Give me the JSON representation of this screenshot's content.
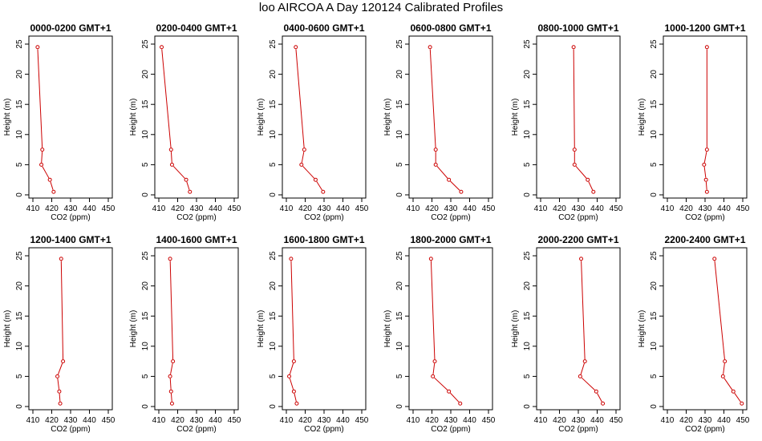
{
  "figure_title": "loo AIRCOA A  Day 120124  Calibrated Profiles",
  "colors": {
    "line": "#cc0000",
    "axis": "#000000",
    "background": "#ffffff"
  },
  "chart_data": [
    {
      "type": "line",
      "title": "0000-0200 GMT+1",
      "xlabel": "CO2 (ppm)",
      "ylabel": "Height (m)",
      "xlim": [
        410,
        450
      ],
      "ylim": [
        0,
        25
      ],
      "xticks": [
        410,
        420,
        430,
        440,
        450
      ],
      "yticks": [
        0,
        5,
        10,
        15,
        20,
        25
      ],
      "grid": false,
      "marker": "open-circle",
      "x": [
        421.0,
        419.0,
        414.5,
        415.0,
        412.5
      ],
      "y": [
        0.5,
        2.5,
        5.0,
        7.5,
        24.5
      ]
    },
    {
      "type": "line",
      "title": "0200-0400 GMT+1",
      "xlabel": "CO2 (ppm)",
      "ylabel": "Height (m)",
      "xlim": [
        410,
        450
      ],
      "ylim": [
        0,
        25
      ],
      "xticks": [
        410,
        420,
        430,
        440,
        450
      ],
      "yticks": [
        0,
        5,
        10,
        15,
        20,
        25
      ],
      "grid": false,
      "marker": "open-circle",
      "x": [
        426.5,
        424.5,
        417.0,
        416.5,
        411.5
      ],
      "y": [
        0.5,
        2.5,
        5.0,
        7.5,
        24.5
      ]
    },
    {
      "type": "line",
      "title": "0400-0600 GMT+1",
      "xlabel": "CO2 (ppm)",
      "ylabel": "Height (m)",
      "xlim": [
        410,
        450
      ],
      "ylim": [
        0,
        25
      ],
      "xticks": [
        410,
        420,
        430,
        440,
        450
      ],
      "yticks": [
        0,
        5,
        10,
        15,
        20,
        25
      ],
      "grid": false,
      "marker": "open-circle",
      "x": [
        429.5,
        425.5,
        418.0,
        419.5,
        415.0
      ],
      "y": [
        0.5,
        2.5,
        5.0,
        7.5,
        24.5
      ]
    },
    {
      "type": "line",
      "title": "0600-0800 GMT+1",
      "xlabel": "CO2 (ppm)",
      "ylabel": "Height (m)",
      "xlim": [
        410,
        450
      ],
      "ylim": [
        0,
        25
      ],
      "xticks": [
        410,
        420,
        430,
        440,
        450
      ],
      "yticks": [
        0,
        5,
        10,
        15,
        20,
        25
      ],
      "grid": false,
      "marker": "open-circle",
      "x": [
        435.5,
        429.0,
        422.0,
        422.0,
        419.0
      ],
      "y": [
        0.5,
        2.5,
        5.0,
        7.5,
        24.5
      ]
    },
    {
      "type": "line",
      "title": "0800-1000 GMT+1",
      "xlabel": "CO2 (ppm)",
      "ylabel": "Height (m)",
      "xlim": [
        410,
        450
      ],
      "ylim": [
        0,
        25
      ],
      "xticks": [
        410,
        420,
        430,
        440,
        450
      ],
      "yticks": [
        0,
        5,
        10,
        15,
        20,
        25
      ],
      "grid": false,
      "marker": "open-circle",
      "x": [
        438.0,
        435.0,
        428.0,
        428.0,
        427.5
      ],
      "y": [
        0.5,
        2.5,
        5.0,
        7.5,
        24.5
      ]
    },
    {
      "type": "line",
      "title": "1000-1200 GMT+1",
      "xlabel": "CO2 (ppm)",
      "ylabel": "Height (m)",
      "xlim": [
        410,
        450
      ],
      "ylim": [
        0,
        25
      ],
      "xticks": [
        410,
        420,
        430,
        440,
        450
      ],
      "yticks": [
        0,
        5,
        10,
        15,
        20,
        25
      ],
      "grid": false,
      "marker": "open-circle",
      "x": [
        431.0,
        430.5,
        429.5,
        431.0,
        431.0
      ],
      "y": [
        0.5,
        2.5,
        5.0,
        7.5,
        24.5
      ]
    },
    {
      "type": "line",
      "title": "1200-1400 GMT+1",
      "xlabel": "CO2 (ppm)",
      "ylabel": "Height (m)",
      "xlim": [
        410,
        450
      ],
      "ylim": [
        0,
        25
      ],
      "xticks": [
        410,
        420,
        430,
        440,
        450
      ],
      "yticks": [
        0,
        5,
        10,
        15,
        20,
        25
      ],
      "grid": false,
      "marker": "open-circle",
      "x": [
        424.5,
        424.0,
        423.0,
        426.0,
        425.0
      ],
      "y": [
        0.5,
        2.5,
        5.0,
        7.5,
        24.5
      ]
    },
    {
      "type": "line",
      "title": "1400-1600 GMT+1",
      "xlabel": "CO2 (ppm)",
      "ylabel": "Height (m)",
      "xlim": [
        410,
        450
      ],
      "ylim": [
        0,
        25
      ],
      "xticks": [
        410,
        420,
        430,
        440,
        450
      ],
      "yticks": [
        0,
        5,
        10,
        15,
        20,
        25
      ],
      "grid": false,
      "marker": "open-circle",
      "x": [
        417.0,
        416.5,
        416.0,
        417.5,
        416.0
      ],
      "y": [
        0.5,
        2.5,
        5.0,
        7.5,
        24.5
      ]
    },
    {
      "type": "line",
      "title": "1600-1800 GMT+1",
      "xlabel": "CO2 (ppm)",
      "ylabel": "Height (m)",
      "xlim": [
        410,
        450
      ],
      "ylim": [
        0,
        25
      ],
      "xticks": [
        410,
        420,
        430,
        440,
        450
      ],
      "yticks": [
        0,
        5,
        10,
        15,
        20,
        25
      ],
      "grid": false,
      "marker": "open-circle",
      "x": [
        415.5,
        414.0,
        411.5,
        414.0,
        412.5
      ],
      "y": [
        0.5,
        2.5,
        5.0,
        7.5,
        24.5
      ]
    },
    {
      "type": "line",
      "title": "1800-2000 GMT+1",
      "xlabel": "CO2 (ppm)",
      "ylabel": "Height (m)",
      "xlim": [
        410,
        450
      ],
      "ylim": [
        0,
        25
      ],
      "xticks": [
        410,
        420,
        430,
        440,
        450
      ],
      "yticks": [
        0,
        5,
        10,
        15,
        20,
        25
      ],
      "grid": false,
      "marker": "open-circle",
      "x": [
        435.0,
        429.0,
        420.5,
        421.5,
        419.5
      ],
      "y": [
        0.5,
        2.5,
        5.0,
        7.5,
        24.5
      ]
    },
    {
      "type": "line",
      "title": "2000-2200 GMT+1",
      "xlabel": "CO2 (ppm)",
      "ylabel": "Height (m)",
      "xlim": [
        410,
        450
      ],
      "ylim": [
        0,
        25
      ],
      "xticks": [
        410,
        420,
        430,
        440,
        450
      ],
      "yticks": [
        0,
        5,
        10,
        15,
        20,
        25
      ],
      "grid": false,
      "marker": "open-circle",
      "x": [
        443.0,
        439.5,
        431.0,
        433.5,
        431.5
      ],
      "y": [
        0.5,
        2.5,
        5.0,
        7.5,
        24.5
      ]
    },
    {
      "type": "line",
      "title": "2200-2400 GMT+1",
      "xlabel": "CO2 (ppm)",
      "ylabel": "Height (m)",
      "xlim": [
        410,
        450
      ],
      "ylim": [
        0,
        25
      ],
      "xticks": [
        410,
        420,
        430,
        440,
        450
      ],
      "yticks": [
        0,
        5,
        10,
        15,
        20,
        25
      ],
      "grid": false,
      "marker": "open-circle",
      "x": [
        449.5,
        445.0,
        439.5,
        440.5,
        435.0
      ],
      "y": [
        0.5,
        2.5,
        5.0,
        7.5,
        24.5
      ]
    }
  ]
}
